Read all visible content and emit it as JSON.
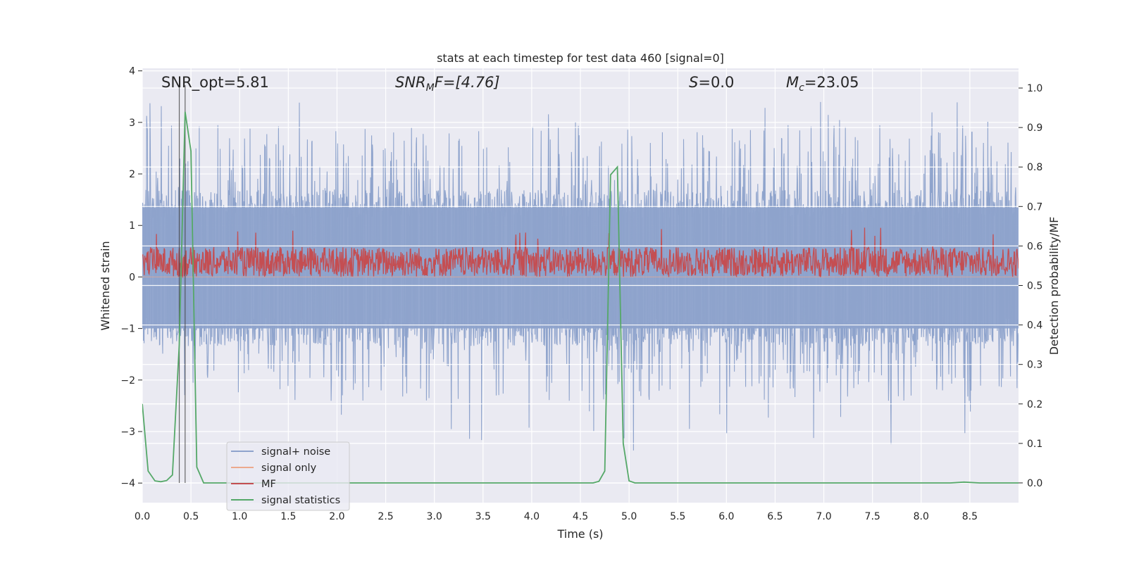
{
  "chart_data": {
    "type": "line",
    "title": "stats at each timestep for test data 460 [signal=0]",
    "xlabel": "Time (s)",
    "ylabel_left": "Whitened strain",
    "ylabel_right": "Detection probability/MF",
    "xlim": [
      0.0,
      9.0
    ],
    "ylim_left": [
      -4.38,
      4.05
    ],
    "ylim_right": [
      -0.05,
      1.05
    ],
    "x_ticks": [
      "0.0",
      "0.5",
      "1.0",
      "1.5",
      "2.0",
      "2.5",
      "3.0",
      "3.5",
      "4.0",
      "4.5",
      "5.0",
      "5.5",
      "6.0",
      "6.5",
      "7.0",
      "7.5",
      "8.0",
      "8.5"
    ],
    "y_left_ticks": [
      "−4",
      "−3",
      "−2",
      "−1",
      "0",
      "1",
      "2",
      "3",
      "4"
    ],
    "y_right_ticks": [
      "0.0",
      "0.1",
      "0.2",
      "0.3",
      "0.4",
      "0.5",
      "0.6",
      "0.7",
      "0.8",
      "0.9",
      "1.0"
    ],
    "grid": true,
    "legend_position": "lower-left",
    "annotations": {
      "snr_opt": "SNR_opt=5.81",
      "snr_mf_base": "SNR",
      "snr_mf_sub": "M",
      "snr_mf_rest": "F=[4.76]",
      "s_base": "S",
      "s_rest": "=0.0",
      "mc_base": "M",
      "mc_sub": "c",
      "mc_rest": "=23.05"
    },
    "vertical_markers_x": [
      0.38,
      0.44
    ],
    "series": [
      {
        "name": "signal+ noise",
        "color": "#8ea3cc",
        "axis": "left",
        "band_min": -1.0,
        "band_max": 1.35,
        "extreme_min": -4.0,
        "extreme_max": 3.65
      },
      {
        "name": "signal only",
        "color": "#eca98d",
        "axis": "left",
        "values": "flat 0"
      },
      {
        "name": "MF",
        "color": "#c44e52",
        "axis": "left",
        "band_min": 0.0,
        "band_max": 0.58,
        "extreme_max": 0.98
      },
      {
        "name": "signal statistics",
        "color": "#55a868",
        "axis": "right",
        "x": [
          0.0,
          0.06,
          0.13,
          0.19,
          0.25,
          0.31,
          0.38,
          0.44,
          0.5,
          0.56,
          0.63,
          0.69,
          4.5,
          4.63,
          4.69,
          4.75,
          4.81,
          4.88,
          4.94,
          5.0,
          5.06,
          5.2,
          8.3,
          8.44,
          8.6,
          9.0
        ],
        "y": [
          0.2,
          0.03,
          0.005,
          0.003,
          0.006,
          0.02,
          0.35,
          0.94,
          0.84,
          0.04,
          0.0,
          0.0,
          0.0,
          0.0,
          0.004,
          0.03,
          0.78,
          0.8,
          0.1,
          0.005,
          0.0,
          0.0,
          0.0,
          0.002,
          0.0,
          0.0
        ]
      }
    ]
  }
}
